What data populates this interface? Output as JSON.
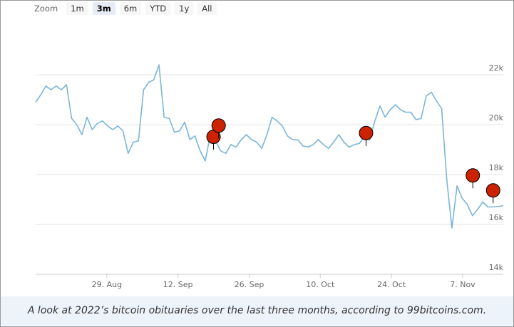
{
  "zoom": {
    "label": "Zoom",
    "buttons": [
      "1m",
      "3m",
      "6m",
      "YTD",
      "1y",
      "All"
    ],
    "active": "3m"
  },
  "caption": "A look at 2022’s bitcoin obituaries over the last three months, according to 99bitcoins.com.",
  "colors": {
    "line": "#7cb5d9",
    "marker_fill": "#cc2200",
    "marker_stroke": "#000000",
    "grid": "#e6e6e6",
    "caption_bg": "#edf3fa"
  },
  "chart_data": {
    "type": "line",
    "series": [
      {
        "values": [
          20900,
          21200,
          21550,
          21400,
          21550,
          21400,
          21600,
          20250,
          20000,
          19600,
          20300,
          19800,
          20050,
          20150,
          19950,
          19800,
          19950,
          19750,
          18850,
          19300,
          19350,
          21400,
          21700,
          21800,
          22400,
          20300,
          20250,
          19700,
          19750,
          20100,
          19400,
          19550,
          18950,
          18550,
          19600,
          19350,
          18950,
          18850,
          19200,
          19100,
          19400,
          19600,
          19400,
          19300,
          19050,
          19600,
          20300,
          20150,
          19950,
          19550,
          19400,
          19400,
          19150,
          19100,
          19200,
          19400,
          19200,
          19050,
          19300,
          19600,
          19300,
          19100,
          19200,
          19250,
          19550,
          19400,
          20150,
          20750,
          20300,
          20600,
          20800,
          20600,
          20500,
          20500,
          20200,
          20250,
          21150,
          21300,
          20950,
          20650,
          17800,
          15850,
          17550,
          17050,
          16800,
          16350,
          16600,
          16900,
          16700,
          16700,
          16720,
          16750
        ]
      }
    ],
    "x_range": [
      "2022-08-15",
      "2022-11-15"
    ],
    "x_ticks": [
      "29. Aug",
      "12. Sep",
      "26. Sep",
      "10. Oct",
      "24. Oct",
      "7. Nov"
    ],
    "y_ticks": [
      "14k",
      "16k",
      "18k",
      "20k",
      "22k"
    ],
    "ylim": [
      14000,
      22500
    ],
    "grid": true,
    "legend": "none",
    "flags": [
      {
        "date": "2022-09-19",
        "value": 19000
      },
      {
        "date": "2022-09-20",
        "value": 19450
      },
      {
        "date": "2022-10-19",
        "value": 19150
      },
      {
        "date": "2022-11-09",
        "value": 17450
      },
      {
        "date": "2022-11-13",
        "value": 16850
      }
    ]
  }
}
